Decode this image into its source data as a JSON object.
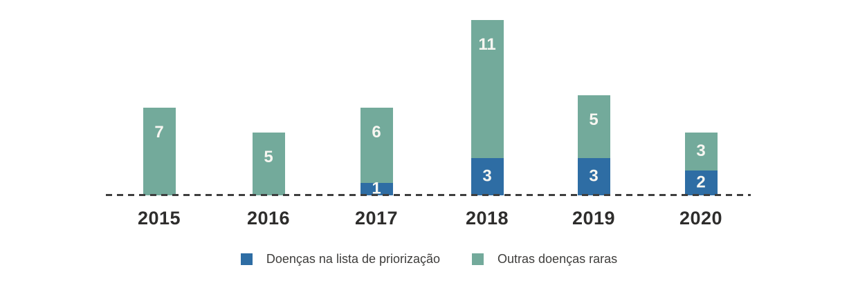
{
  "chart_data": {
    "type": "bar",
    "stacked": true,
    "orientation": "vertical",
    "title": "",
    "xlabel": "",
    "ylabel": "",
    "categories": [
      "2015",
      "2016",
      "2017",
      "2018",
      "2019",
      "2020"
    ],
    "series": [
      {
        "name": "Doenças na lista de priorização",
        "color": "#2E6DA4",
        "values": [
          0,
          0,
          1,
          3,
          3,
          2
        ]
      },
      {
        "name": "Outras doenças raras",
        "color": "#73AA9B",
        "values": [
          7,
          5,
          6,
          11,
          5,
          3
        ]
      }
    ],
    "totals": [
      7,
      5,
      7,
      14,
      8,
      5
    ],
    "ylim": [
      0,
      14
    ],
    "grid": false,
    "y_axis_visible": false,
    "baseline_style": "dashed",
    "baseline_color": "#3E3E3E",
    "data_labels": true,
    "data_label_color": "#F7F6F1",
    "tick_label_color": "#2E2D2C",
    "legend_position": "bottom",
    "background": "#FFFFFF"
  }
}
